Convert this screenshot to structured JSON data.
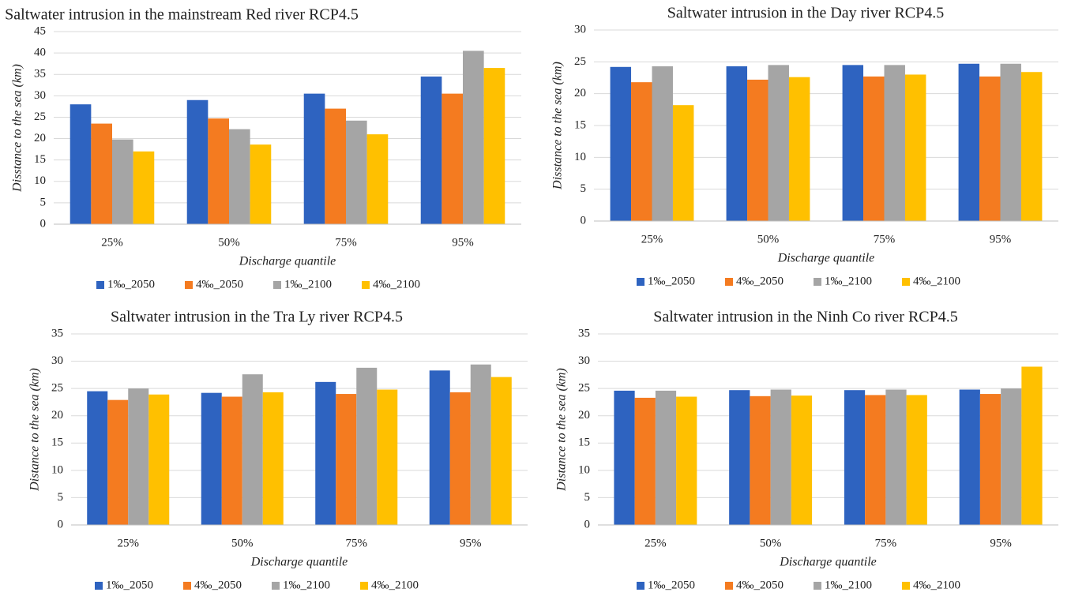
{
  "chart_data": [
    {
      "type": "bar",
      "title": "Saltwater intrusion in the mainstream  Red river RCP4.5",
      "y_label": "Disstance to the sea (km)",
      "x_label": "Discharge quantile",
      "categories": [
        "25%",
        "50%",
        "75%",
        "95%"
      ],
      "ylim": [
        0,
        45
      ],
      "yticks": [
        0,
        5,
        10,
        15,
        20,
        25,
        30,
        35,
        40,
        45
      ],
      "grid": true,
      "series": [
        {
          "name": "1‰_2050",
          "color": "#2e63c0",
          "values": [
            28,
            29,
            30.5,
            34.5
          ]
        },
        {
          "name": "4‰_2050",
          "color": "#f47b20",
          "values": [
            23.5,
            24.7,
            27,
            30.5
          ]
        },
        {
          "name": "1‰_2100",
          "color": "#a5a5a5",
          "values": [
            19.8,
            22.2,
            24.2,
            40.5
          ]
        },
        {
          "name": "4‰_2100",
          "color": "#ffc000",
          "values": [
            17,
            18.6,
            21,
            36.5
          ]
        }
      ]
    },
    {
      "type": "bar",
      "title": "Saltwater intrusion in the Day river RCP4.5",
      "y_label": "Disstance to the sea (km)",
      "x_label": "Discharge quantile",
      "categories": [
        "25%",
        "50%",
        "75%",
        "95%"
      ],
      "ylim": [
        0,
        30
      ],
      "yticks": [
        0,
        5,
        10,
        15,
        20,
        25,
        30
      ],
      "grid": true,
      "series": [
        {
          "name": "1‰_2050",
          "color": "#2e63c0",
          "values": [
            24.2,
            24.3,
            24.5,
            24.7
          ]
        },
        {
          "name": "4‰_2050",
          "color": "#f47b20",
          "values": [
            21.8,
            22.2,
            22.7,
            22.7
          ]
        },
        {
          "name": "1‰_2100",
          "color": "#a5a5a5",
          "values": [
            24.3,
            24.5,
            24.5,
            24.7
          ]
        },
        {
          "name": "4‰_2100",
          "color": "#ffc000",
          "values": [
            18.2,
            22.6,
            23,
            23.4
          ]
        }
      ]
    },
    {
      "type": "bar",
      "title": "Saltwater intrusion in the Tra Ly river RCP4.5",
      "y_label": "Distance to the sea (km)",
      "x_label": "Discharge quantile",
      "categories": [
        "25%",
        "50%",
        "75%",
        "95%"
      ],
      "ylim": [
        0,
        35
      ],
      "yticks": [
        0,
        5,
        10,
        15,
        20,
        25,
        30,
        35
      ],
      "grid": true,
      "series": [
        {
          "name": "1‰_2050",
          "color": "#2e63c0",
          "values": [
            24.5,
            24.2,
            26.2,
            28.3
          ]
        },
        {
          "name": "4‰_2050",
          "color": "#f47b20",
          "values": [
            22.9,
            23.5,
            24,
            24.3
          ]
        },
        {
          "name": "1‰_2100",
          "color": "#a5a5a5",
          "values": [
            25,
            27.6,
            28.8,
            29.4
          ]
        },
        {
          "name": "4‰_2100",
          "color": "#ffc000",
          "values": [
            23.9,
            24.3,
            24.8,
            27.1
          ]
        }
      ]
    },
    {
      "type": "bar",
      "title": "Saltwater intrusion in the Ninh Co river RCP4.5",
      "y_label": "Distance to the sea (km)",
      "x_label": "Discharge quantile",
      "categories": [
        "25%",
        "50%",
        "75%",
        "95%"
      ],
      "ylim": [
        0,
        35
      ],
      "yticks": [
        0,
        5,
        10,
        15,
        20,
        25,
        30,
        35
      ],
      "grid": true,
      "series": [
        {
          "name": "1‰_2050",
          "color": "#2e63c0",
          "values": [
            24.6,
            24.7,
            24.7,
            24.8
          ]
        },
        {
          "name": "4‰_2050",
          "color": "#f47b20",
          "values": [
            23.3,
            23.6,
            23.8,
            24
          ]
        },
        {
          "name": "1‰_2100",
          "color": "#a5a5a5",
          "values": [
            24.6,
            24.8,
            24.8,
            25
          ]
        },
        {
          "name": "4‰_2100",
          "color": "#ffc000",
          "values": [
            23.5,
            23.7,
            23.8,
            29
          ]
        }
      ]
    }
  ]
}
